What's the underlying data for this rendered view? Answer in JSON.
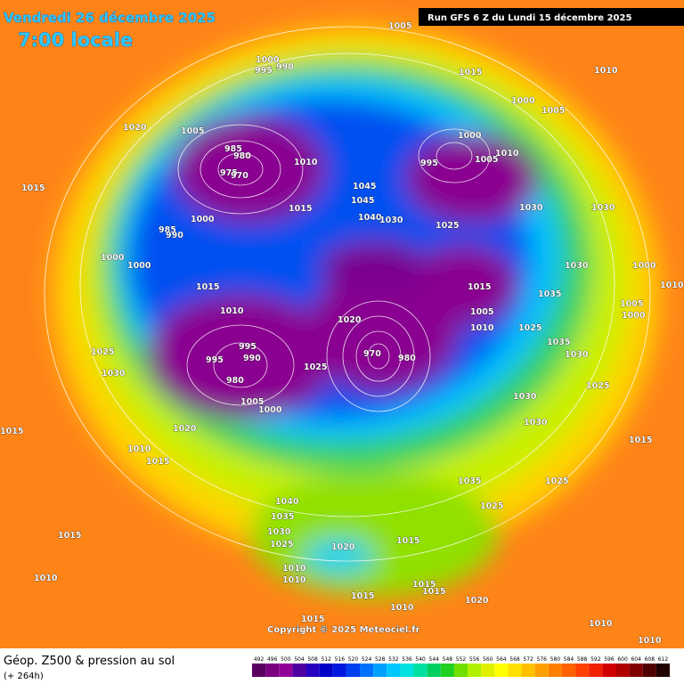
{
  "header": {
    "date": "Vendredi 26 décembre 2025",
    "time": "7:00 locale",
    "run": "Run GFS 6 Z du Lundi 15 décembre 2025"
  },
  "copyright": "Copyright © 2025 Meteociel.fr",
  "legend": {
    "title": "Géop. Z500 & pression au sol",
    "lead": "(+ 264h)",
    "ticks": [
      492,
      496,
      500,
      504,
      508,
      512,
      516,
      520,
      524,
      528,
      532,
      536,
      540,
      544,
      548,
      552,
      556,
      560,
      564,
      568,
      572,
      576,
      580,
      584,
      588,
      592,
      596,
      600,
      604,
      608,
      612
    ],
    "colors": [
      "#5a0060",
      "#7a0080",
      "#92009a",
      "#5000a0",
      "#2800c0",
      "#0000c8",
      "#0018e0",
      "#0040f0",
      "#0070ff",
      "#00a0ff",
      "#00c8ff",
      "#00e0e0",
      "#00e0a0",
      "#00d060",
      "#20d020",
      "#70e000",
      "#b0f000",
      "#e0f000",
      "#ffff00",
      "#ffe000",
      "#ffc000",
      "#ffa000",
      "#ff8000",
      "#ff6000",
      "#ff4000",
      "#f02000",
      "#d00000",
      "#b00000",
      "#800000",
      "#500000",
      "#200000"
    ]
  },
  "isobar_labels": [
    "1005",
    "1000",
    "995",
    "990",
    "1015",
    "1010",
    "1020",
    "1005",
    "985",
    "980",
    "975",
    "970",
    "1010",
    "1015",
    "1045",
    "1045",
    "1015",
    "1000",
    "985",
    "990",
    "1040",
    "1030",
    "1000",
    "1005",
    "1000",
    "995",
    "1005",
    "1010",
    "1030",
    "1030",
    "1025",
    "1000",
    "1000",
    "1015",
    "1010",
    "1015",
    "1030",
    "1000",
    "1035",
    "1005",
    "1010",
    "1020",
    "995",
    "995",
    "990",
    "980",
    "970",
    "980",
    "1025",
    "1025",
    "1035",
    "1030",
    "1025",
    "1030",
    "1005",
    "1000",
    "1020",
    "1030",
    "1030",
    "1015",
    "1015",
    "1010",
    "1015",
    "1035",
    "1025",
    "1025",
    "1040",
    "1035",
    "1030",
    "1025",
    "1020",
    "1015",
    "1015",
    "1010",
    "1010",
    "1010",
    "1015",
    "1015",
    "1015",
    "1020",
    "1010",
    "1015",
    "1010",
    "1010",
    "1005",
    "1000",
    "1010",
    "1025"
  ]
}
